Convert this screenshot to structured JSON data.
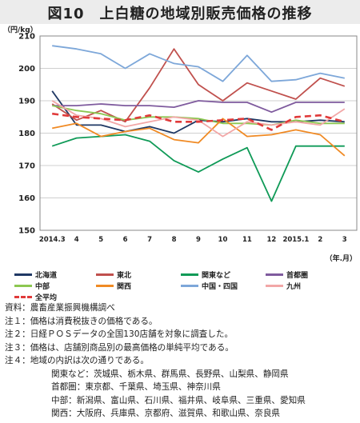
{
  "title": "図10　上白糖の地域別販売価格の推移",
  "chart_data": {
    "type": "line",
    "ylabel": "（円/kg）",
    "xlabel": "（年.月）",
    "ylim": [
      150,
      210
    ],
    "yticks": [
      150,
      160,
      170,
      180,
      190,
      200,
      210
    ],
    "categories": [
      "2014.3",
      "4",
      "5",
      "6",
      "7",
      "8",
      "9",
      "10",
      "11",
      "12",
      "2015.1",
      "2",
      "3"
    ],
    "grid": true,
    "legend_position": "bottom",
    "series": [
      {
        "name": "北海道",
        "color": "#1f3864",
        "dashed": false,
        "values": [
          193.0,
          182.5,
          182.5,
          180.5,
          182.0,
          180.0,
          184.0,
          183.5,
          184.5,
          183.5,
          183.5,
          184.0,
          183.5
        ]
      },
      {
        "name": "東北",
        "color": "#c0504d",
        "dashed": false,
        "values": [
          189.0,
          184.0,
          187.0,
          183.5,
          194.0,
          206.0,
          195.0,
          190.0,
          195.5,
          193.0,
          190.5,
          197.0,
          194.5
        ]
      },
      {
        "name": "関東など",
        "color": "#0f9a57",
        "dashed": false,
        "values": [
          176.0,
          178.5,
          179.0,
          179.5,
          177.5,
          171.5,
          168.0,
          172.0,
          175.5,
          159.0,
          176.0,
          176.0,
          176.0
        ]
      },
      {
        "name": "首都圏",
        "color": "#7f5b9e",
        "dashed": false,
        "values": [
          188.5,
          188.5,
          189.0,
          188.5,
          188.5,
          188.0,
          190.0,
          189.5,
          189.5,
          186.5,
          189.5,
          189.5,
          189.5
        ]
      },
      {
        "name": "中部",
        "color": "#8cc751",
        "dashed": false,
        "values": [
          188.5,
          187.0,
          186.0,
          184.0,
          185.0,
          185.0,
          184.5,
          183.0,
          183.0,
          182.5,
          184.0,
          183.0,
          183.0
        ]
      },
      {
        "name": "関西",
        "color": "#f08a24",
        "dashed": false,
        "values": [
          181.5,
          183.0,
          179.0,
          180.5,
          181.5,
          178.0,
          177.0,
          184.5,
          179.0,
          179.5,
          181.0,
          179.5,
          173.0
        ]
      },
      {
        "name": "中国・四国",
        "color": "#7da7d9",
        "dashed": false,
        "values": [
          207.0,
          206.0,
          204.5,
          200.0,
          204.5,
          201.5,
          200.5,
          196.0,
          204.0,
          196.0,
          196.5,
          198.5,
          197.0
        ]
      },
      {
        "name": "九州",
        "color": "#f2a7a7",
        "dashed": false,
        "values": [
          190.0,
          185.5,
          184.5,
          182.0,
          183.5,
          185.0,
          184.0,
          179.0,
          183.5,
          182.5,
          183.5,
          182.5,
          187.5
        ]
      },
      {
        "name": "全平均",
        "color": "#e03a3a",
        "dashed": true,
        "values": [
          186.0,
          185.0,
          184.5,
          184.0,
          185.5,
          183.5,
          183.5,
          184.0,
          184.5,
          181.0,
          185.0,
          185.5,
          183.5
        ]
      }
    ]
  },
  "notes": [
    "資料：農畜産業振興機構調べ",
    "注１：価格は消費税抜きの価格である。",
    "注２：日経ＰＯＳデータの全国130店舗を対象に調査した。",
    "注３：価格は、店舗別商品別の最高価格の単純平均である。",
    "注４：地域の内訳は次の通りである。"
  ],
  "region_notes": [
    "関東など：茨城県、栃木県、群馬県、長野県、山梨県、静岡県",
    "首都圏：東京都、千葉県、埼玉県、神奈川県",
    "中部：新潟県、富山県、石川県、福井県、岐阜県、三重県、愛知県",
    "関西：大阪府、兵庫県、京都府、滋賀県、和歌山県、奈良県"
  ]
}
